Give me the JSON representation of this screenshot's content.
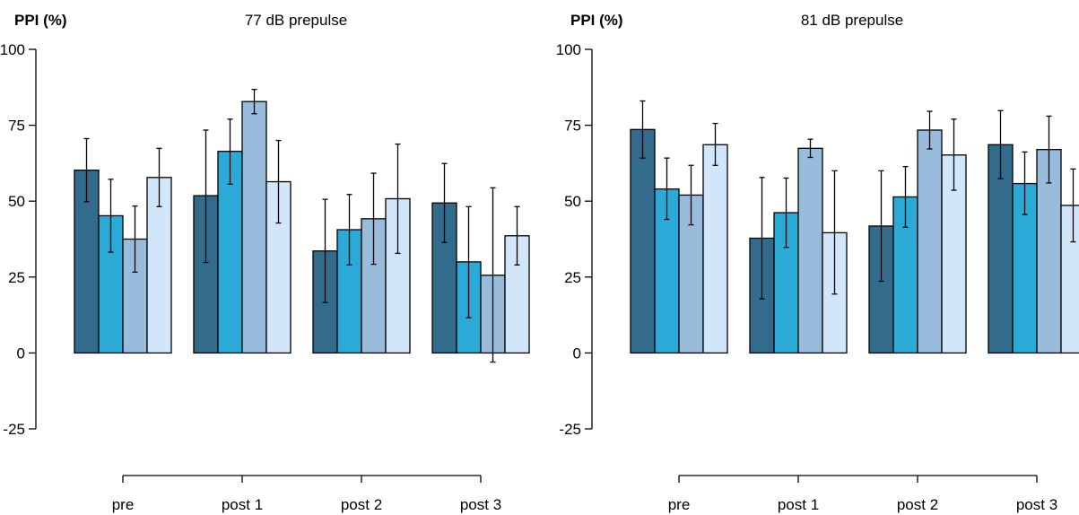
{
  "chart_data": [
    {
      "type": "bar",
      "title": "77 dB prepulse",
      "ylabel": "PPI (%)",
      "xlabel": "",
      "ylim": [
        -25,
        100
      ],
      "yticks": [
        -25,
        0,
        25,
        50,
        75,
        100
      ],
      "grid": false,
      "categories": [
        "pre",
        "post 1",
        "post 2",
        "post 3"
      ],
      "series": [
        {
          "color": "#336b8d",
          "values": [
            60.2,
            51.8,
            33.6,
            49.4
          ],
          "error_low": [
            49.8,
            29.8,
            16.6,
            36.4
          ],
          "error_high": [
            70.6,
            73.4,
            50.6,
            62.4
          ]
        },
        {
          "color": "#2baad8",
          "values": [
            45.2,
            66.4,
            40.6,
            30.0
          ],
          "error_low": [
            33.2,
            55.6,
            29.0,
            11.6
          ],
          "error_high": [
            57.2,
            77.0,
            52.2,
            48.2
          ]
        },
        {
          "color": "#99bcdd",
          "values": [
            37.5,
            82.8,
            44.2,
            25.6
          ],
          "error_low": [
            26.6,
            78.8,
            29.2,
            -3.0
          ],
          "error_high": [
            48.4,
            86.8,
            59.2,
            54.4
          ]
        },
        {
          "color": "#d2e6f9",
          "values": [
            57.8,
            56.4,
            50.8,
            38.6
          ],
          "error_low": [
            48.2,
            42.8,
            32.8,
            29.0
          ],
          "error_high": [
            67.4,
            70.0,
            68.8,
            48.2
          ]
        }
      ]
    },
    {
      "type": "bar",
      "title": "81 dB prepulse",
      "ylabel": "PPI (%)",
      "xlabel": "",
      "ylim": [
        -25,
        100
      ],
      "yticks": [
        -25,
        0,
        25,
        50,
        75,
        100
      ],
      "grid": false,
      "categories": [
        "pre",
        "post 1",
        "post 2",
        "post 3"
      ],
      "series": [
        {
          "color": "#336b8d",
          "values": [
            73.6,
            37.8,
            41.8,
            68.6
          ],
          "error_low": [
            64.2,
            17.8,
            23.6,
            57.4
          ],
          "error_high": [
            83.0,
            57.8,
            60.0,
            79.8
          ]
        },
        {
          "color": "#2baad8",
          "values": [
            54.0,
            46.2,
            51.4,
            55.8
          ],
          "error_low": [
            44.0,
            34.8,
            41.4,
            45.6
          ],
          "error_high": [
            64.2,
            57.6,
            61.4,
            66.2
          ]
        },
        {
          "color": "#99bcdd",
          "values": [
            52.0,
            67.4,
            73.4,
            67.0
          ],
          "error_low": [
            42.2,
            64.4,
            67.2,
            56.0
          ],
          "error_high": [
            61.8,
            70.4,
            79.6,
            78.0
          ]
        },
        {
          "color": "#d2e6f9",
          "values": [
            68.6,
            39.6,
            65.2,
            48.6
          ],
          "error_low": [
            61.8,
            19.4,
            53.6,
            36.6
          ],
          "error_high": [
            75.6,
            60.0,
            77.0,
            60.6
          ]
        }
      ]
    }
  ]
}
